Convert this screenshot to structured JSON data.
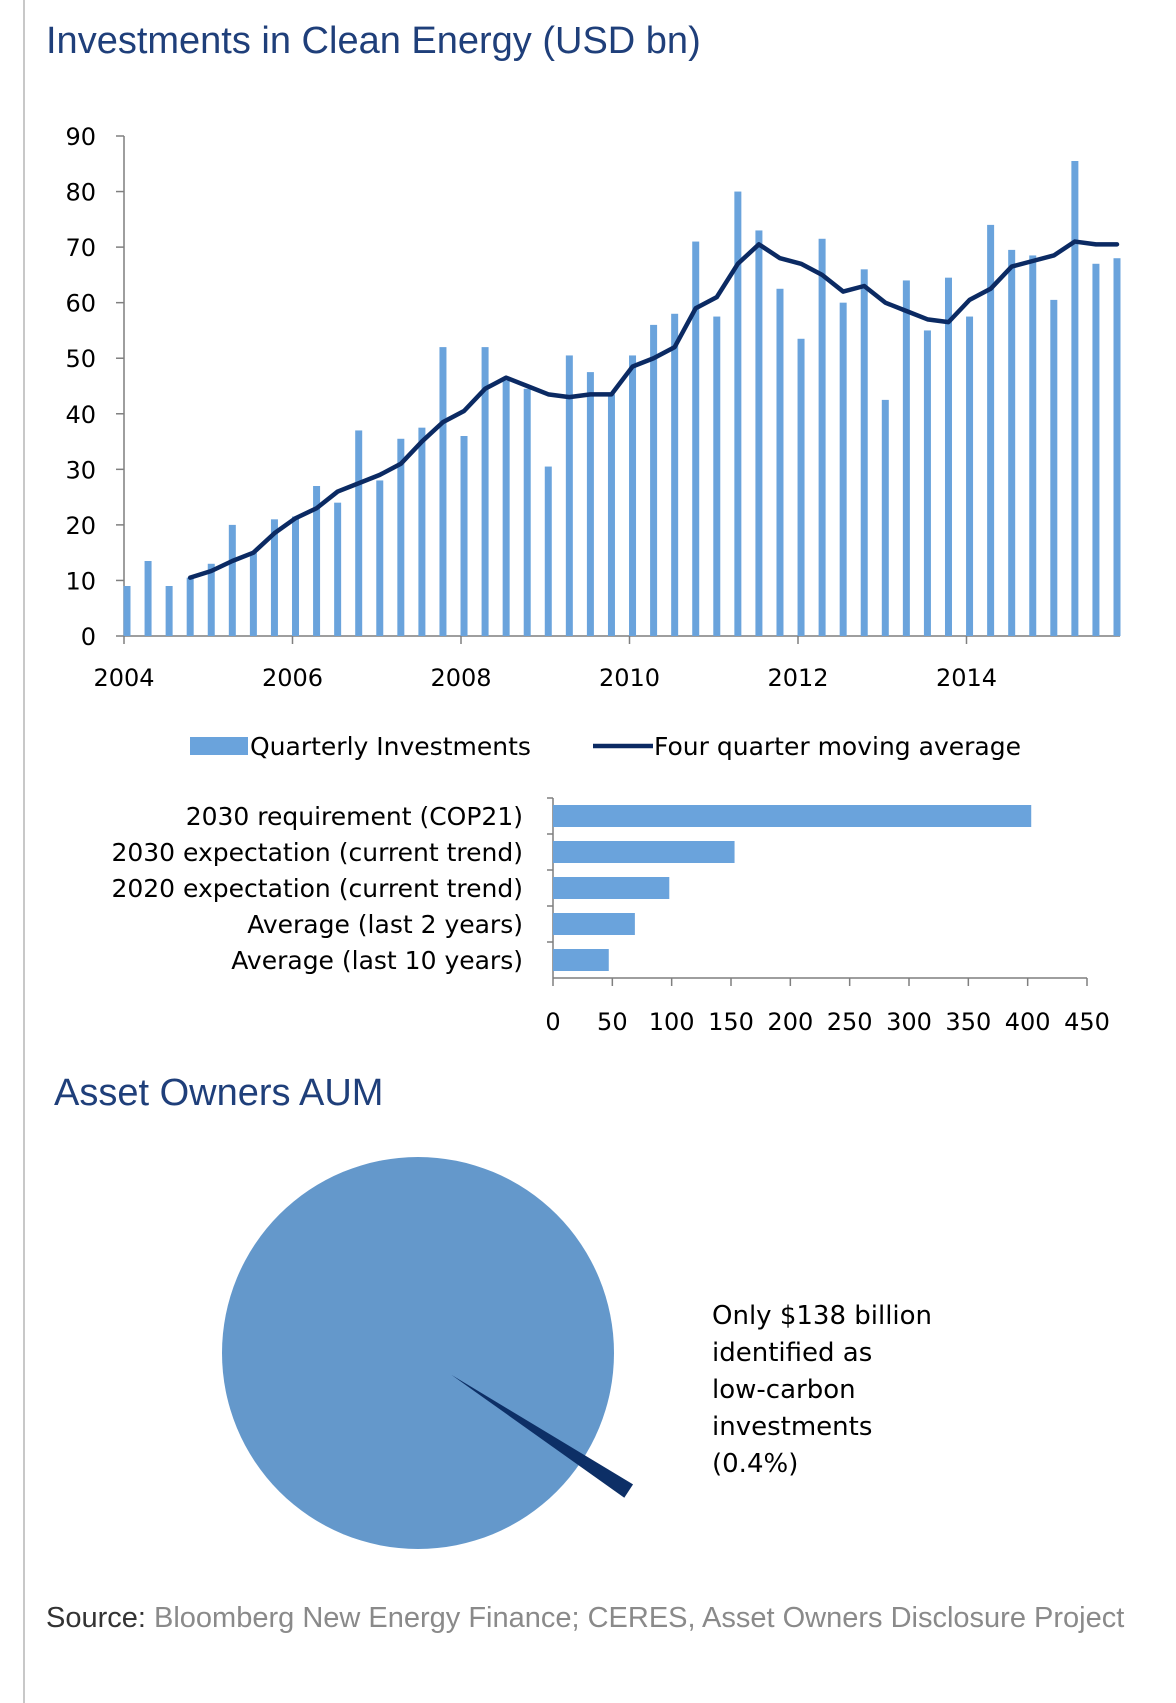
{
  "colors": {
    "bar": "#6aa3dc",
    "line": "#0b2a63",
    "pie": "#6498cb",
    "pie_slice": "#0d2f66",
    "title": "#1f3f7a"
  },
  "chart_data": [
    {
      "type": "bar+line",
      "title": "Investments in Clean Energy (USD bn)",
      "ylim": [
        0,
        90
      ],
      "yticks": [
        "0",
        "10",
        "20",
        "30",
        "40",
        "50",
        "60",
        "70",
        "80",
        "90"
      ],
      "xticks": [
        "2004",
        "2006",
        "2008",
        "2010",
        "2012",
        "2014"
      ],
      "xlim": [
        2004,
        2015.75
      ],
      "quarters": [
        2004.0,
        2004.25,
        2004.5,
        2004.75,
        2005.0,
        2005.25,
        2005.5,
        2005.75,
        2006.0,
        2006.25,
        2006.5,
        2006.75,
        2007.0,
        2007.25,
        2007.5,
        2007.75,
        2008.0,
        2008.25,
        2008.5,
        2008.75,
        2009.0,
        2009.25,
        2009.5,
        2009.75,
        2010.0,
        2010.25,
        2010.5,
        2010.75,
        2011.0,
        2011.25,
        2011.5,
        2011.75,
        2012.0,
        2012.25,
        2012.5,
        2012.75,
        2013.0,
        2013.25,
        2013.5,
        2013.75,
        2014.0,
        2014.25,
        2014.5,
        2014.75,
        2015.0,
        2015.25,
        2015.5,
        2015.75
      ],
      "series": [
        {
          "name": "Quarterly Investments",
          "kind": "bar",
          "values": [
            9,
            13.5,
            9,
            10.5,
            13,
            20,
            15,
            21,
            21.5,
            27,
            24,
            37,
            28,
            35.5,
            37.5,
            52,
            36,
            52,
            46,
            44.5,
            30.5,
            50.5,
            47.5,
            43.5,
            50.5,
            56,
            58,
            71,
            57.5,
            80,
            73,
            62.5,
            53.5,
            71.5,
            60,
            66,
            42.5,
            64,
            55,
            64.5,
            57.5,
            74,
            69.5,
            68.5,
            60.5,
            85.5,
            67,
            68
          ]
        },
        {
          "name": "Four quarter moving average",
          "kind": "line",
          "values": [
            null,
            null,
            null,
            10.5,
            11.7,
            13.5,
            15,
            18.5,
            21.2,
            23,
            26,
            27.5,
            29,
            31,
            35,
            38.5,
            40.5,
            44.5,
            46.5,
            45,
            43.5,
            43,
            43.5,
            43.5,
            48.5,
            50,
            52,
            59,
            61,
            67,
            70.5,
            68,
            67,
            65,
            62,
            63,
            60,
            58.5,
            57,
            56.5,
            60.5,
            62.5,
            66.5,
            67.5,
            68.5,
            71,
            70.5,
            70.5
          ]
        }
      ],
      "legend": [
        "Quarterly Investments",
        "Four quarter moving average"
      ],
      "legend_position": "bottom"
    },
    {
      "type": "bar",
      "orientation": "horizontal",
      "categories": [
        "2030 requirement (COP21)",
        "2030 expectation (current trend)",
        "2020 expectation (current trend)",
        "Average (last 2 years)",
        "Average (last 10 years)"
      ],
      "values": [
        403,
        153,
        98,
        69,
        47
      ],
      "xlim": [
        0,
        450
      ],
      "xticks": [
        "0",
        "50",
        "100",
        "150",
        "200",
        "250",
        "300",
        "350",
        "400",
        "450"
      ]
    },
    {
      "type": "pie",
      "title": "Asset Owners AUM",
      "slices": [
        {
          "label": "low-carbon investments",
          "percent": 0.4
        },
        {
          "label": "",
          "percent": 99.6
        }
      ],
      "annotation": [
        "Only $138 billion",
        "identified as",
        "low-carbon",
        "investments",
        "(0.4%)"
      ]
    }
  ],
  "source": {
    "label": "Source:",
    "text": "Bloomberg New Energy Finance; CERES, Asset Owners Disclosure Project"
  }
}
